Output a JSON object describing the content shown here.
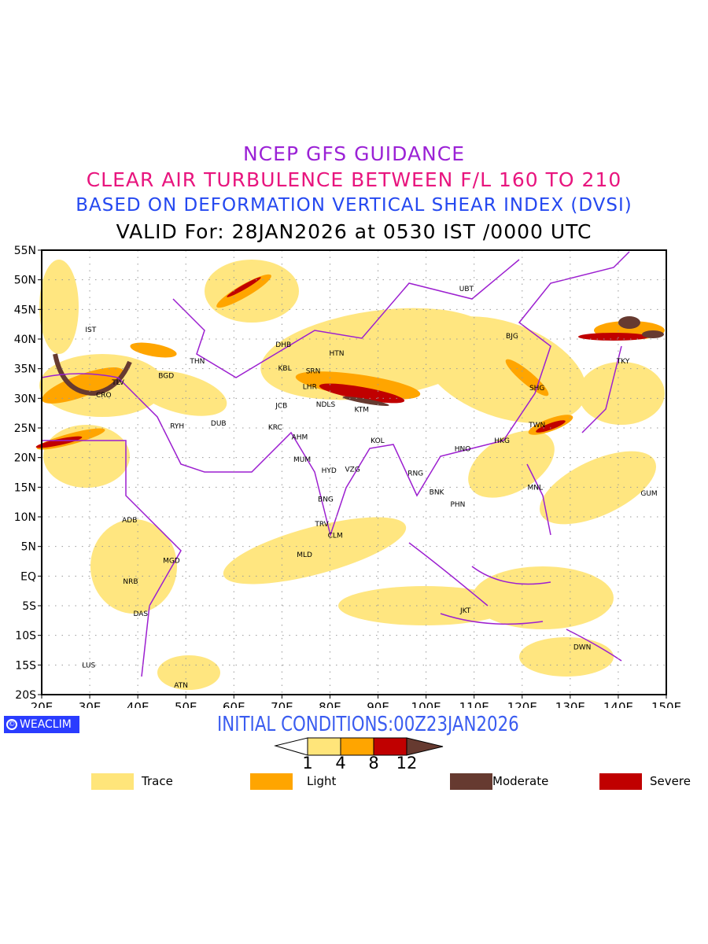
{
  "titles": {
    "line1": "NCEP GFS GUIDANCE",
    "line2": "CLEAR AIR TURBULENCE BETWEEN F/L 160 TO 210",
    "line3": "BASED ON DEFORMATION VERTICAL SHEAR INDEX (DVSI)",
    "line4": "VALID For: 28JAN2026 at 0530 IST /0000 UTC"
  },
  "initial_conditions": "INITIAL CONDITIONS:00Z23JAN2026",
  "badge": {
    "icon": "copyright-icon",
    "label": "WEACLIM"
  },
  "map": {
    "lon_range": [
      20,
      150
    ],
    "lat_range": [
      -20,
      55
    ],
    "lon_ticks": [
      "20E",
      "30E",
      "40E",
      "50E",
      "60E",
      "70E",
      "80E",
      "90E",
      "100E",
      "110E",
      "120E",
      "130E",
      "140E",
      "150E"
    ],
    "lat_ticks": [
      "55N",
      "50N",
      "45N",
      "40N",
      "35N",
      "30N",
      "25N",
      "20N",
      "15N",
      "10N",
      "5N",
      "EQ",
      "5S",
      "10S",
      "15S",
      "20S"
    ],
    "stations": [
      {
        "code": "IST",
        "lon": 30.2,
        "lat": 41.6
      },
      {
        "code": "TLV",
        "lon": 35.9,
        "lat": 32.7
      },
      {
        "code": "CRO",
        "lon": 32.9,
        "lat": 30.6
      },
      {
        "code": "BGD",
        "lon": 45.9,
        "lat": 33.8
      },
      {
        "code": "THN",
        "lon": 52.4,
        "lat": 36.3
      },
      {
        "code": "DHB",
        "lon": 70.3,
        "lat": 39.1
      },
      {
        "code": "KBL",
        "lon": 70.6,
        "lat": 35.1
      },
      {
        "code": "SRN",
        "lon": 76.5,
        "lat": 34.6
      },
      {
        "code": "LHR",
        "lon": 75.8,
        "lat": 32.0
      },
      {
        "code": "NDLS",
        "lon": 79.1,
        "lat": 29.0
      },
      {
        "code": "KTM",
        "lon": 86.6,
        "lat": 28.1
      },
      {
        "code": "JCB",
        "lon": 69.9,
        "lat": 28.8
      },
      {
        "code": "KRC",
        "lon": 68.6,
        "lat": 25.1
      },
      {
        "code": "AHM",
        "lon": 73.7,
        "lat": 23.5
      },
      {
        "code": "MUM",
        "lon": 74.2,
        "lat": 19.7
      },
      {
        "code": "HYD",
        "lon": 79.8,
        "lat": 17.8
      },
      {
        "code": "VZG",
        "lon": 84.7,
        "lat": 18.0
      },
      {
        "code": "KOL",
        "lon": 89.9,
        "lat": 22.9
      },
      {
        "code": "RYH",
        "lon": 48.2,
        "lat": 25.3
      },
      {
        "code": "DUB",
        "lon": 56.8,
        "lat": 25.8
      },
      {
        "code": "HTN",
        "lon": 81.4,
        "lat": 37.6
      },
      {
        "code": "UBT",
        "lon": 108.4,
        "lat": 48.5
      },
      {
        "code": "BJG",
        "lon": 117.9,
        "lat": 40.5
      },
      {
        "code": "TKY",
        "lon": 141.0,
        "lat": 36.3
      },
      {
        "code": "SHG",
        "lon": 123.1,
        "lat": 31.8
      },
      {
        "code": "TWN",
        "lon": 123.1,
        "lat": 25.5
      },
      {
        "code": "HKG",
        "lon": 115.8,
        "lat": 22.9
      },
      {
        "code": "HNO",
        "lon": 107.6,
        "lat": 21.5
      },
      {
        "code": "RNG",
        "lon": 97.8,
        "lat": 17.4
      },
      {
        "code": "BNK",
        "lon": 102.2,
        "lat": 14.2
      },
      {
        "code": "PHN",
        "lon": 106.6,
        "lat": 12.1
      },
      {
        "code": "MNL",
        "lon": 122.7,
        "lat": 15.0
      },
      {
        "code": "GUM",
        "lon": 146.4,
        "lat": 14.0
      },
      {
        "code": "ADB",
        "lon": 38.3,
        "lat": 9.5
      },
      {
        "code": "MGD",
        "lon": 47.0,
        "lat": 2.6
      },
      {
        "code": "NRB",
        "lon": 38.5,
        "lat": -0.9
      },
      {
        "code": "DAS",
        "lon": 40.6,
        "lat": -6.3
      },
      {
        "code": "LUS",
        "lon": 29.8,
        "lat": -15.0
      },
      {
        "code": "ATN",
        "lon": 49.0,
        "lat": -18.4
      },
      {
        "code": "BNG",
        "lon": 79.1,
        "lat": 13.0
      },
      {
        "code": "TRV",
        "lon": 78.3,
        "lat": 8.8
      },
      {
        "code": "CLM",
        "lon": 81.1,
        "lat": 6.9
      },
      {
        "code": "MLD",
        "lon": 74.7,
        "lat": 3.6
      },
      {
        "code": "JKT",
        "lon": 108.2,
        "lat": -5.8
      },
      {
        "code": "DWN",
        "lon": 132.5,
        "lat": -12.0
      }
    ]
  },
  "colorbar": {
    "levels": [
      "1",
      "4",
      "8",
      "12"
    ],
    "colors": {
      "trace": "#ffe57a",
      "light": "#ffa500",
      "severe": "#c00000",
      "moderate": "#663a30"
    }
  },
  "legend": [
    {
      "label": "Trace",
      "color": "#ffe57a"
    },
    {
      "label": "Light",
      "color": "#ffa500"
    },
    {
      "label": "Moderate",
      "color": "#663a30"
    },
    {
      "label": "Severe",
      "color": "#c00000"
    }
  ],
  "border_color": "#9c1fd0"
}
